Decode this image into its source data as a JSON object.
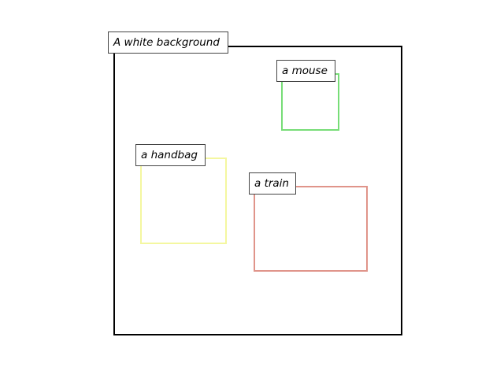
{
  "scene": {
    "caption": "A white background",
    "frame_color": "#000000"
  },
  "objects": [
    {
      "label": "a mouse",
      "color": "#77dd77"
    },
    {
      "label": "a handbag",
      "color": "#f4f7a0"
    },
    {
      "label": "a train",
      "color": "#e0948a"
    }
  ]
}
